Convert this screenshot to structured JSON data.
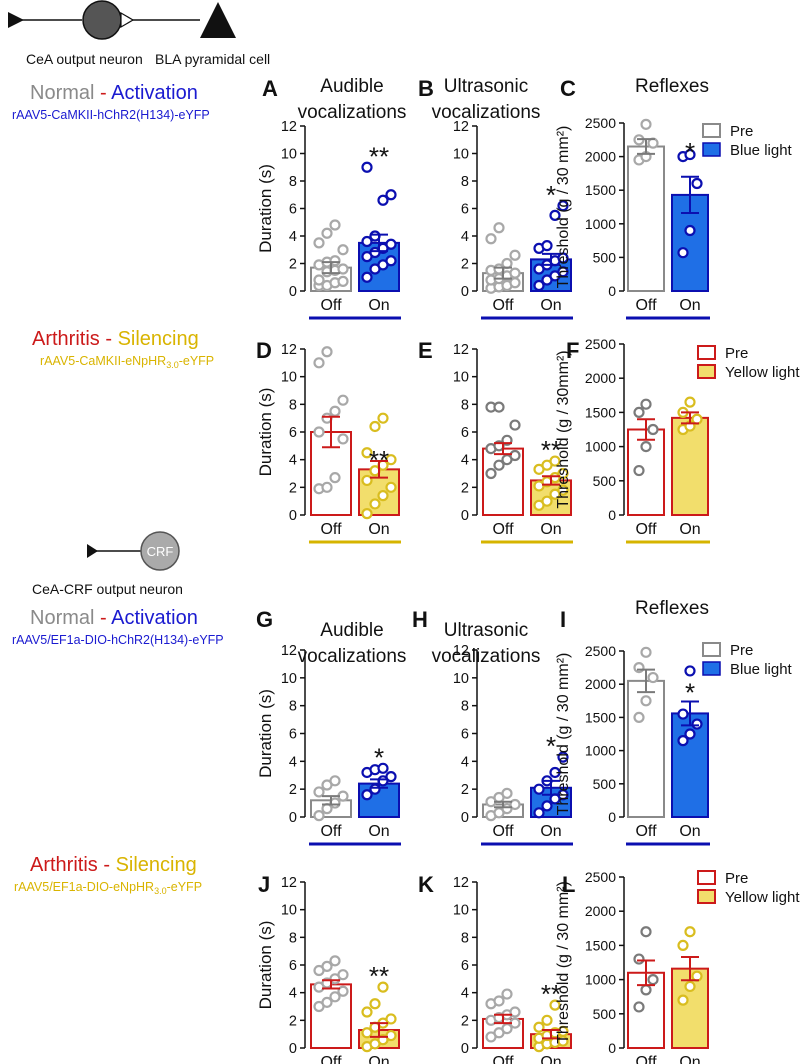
{
  "colors": {
    "blue": "#1f6fe6",
    "blue_stroke": "#0b0fb0",
    "blue_text": "#1a1ad0",
    "red": "#cc1a1a",
    "yellow": "#f2de6c",
    "yellow_line": "#d6b400",
    "yellow_pt": "#d9bd1f",
    "gray": "#8a8a8a",
    "gray_pt": "#a8a8a8",
    "dark_gray": "#7a7a7a",
    "dark": "#111111"
  },
  "schematic1": {
    "neuron1_label": "CeA output neuron",
    "neuron2_label": "BLA pyramidal cell"
  },
  "schematic2": {
    "cell_text": "CRF",
    "neuron_label": "CeA-CRF output neuron"
  },
  "row_headers": [
    {
      "word1": "Normal",
      "dash": " - ",
      "word2": "Activation",
      "construct": "rAAV5-CaMKII-hChR2(H134)-eYFP"
    },
    {
      "word1": "Arthritis",
      "dash": " - ",
      "word2": "Silencing",
      "construct": "rAAV5-CaMKII-eNpHR",
      "construct_sub": "3.0",
      "construct_end": "-eYFP"
    },
    {
      "word1": "Normal",
      "dash": " - ",
      "word2": "Activation",
      "construct": "rAAV5/EF1a-DIO-hChR2(H134)-eYFP"
    },
    {
      "word1": "Arthritis",
      "dash": " - ",
      "word2": "Silencing",
      "construct": "rAAV5/EF1a-DIO-eNpHR",
      "construct_sub": "3.0",
      "construct_end": "-eYFP"
    }
  ],
  "legends": [
    {
      "items": [
        "Pre",
        "Blue light"
      ]
    },
    {
      "items": [
        "Pre",
        "Yellow light"
      ]
    },
    {
      "items": [
        "Pre",
        "Blue light"
      ]
    },
    {
      "items": [
        "Pre",
        "Yellow light"
      ]
    }
  ],
  "chart_data": [
    {
      "panel": "A",
      "type": "bar",
      "title": [
        "Audible",
        "vocalizations"
      ],
      "ylabel": "Duration (s)",
      "ylim": [
        0,
        12
      ],
      "yticks": [
        0,
        2,
        4,
        6,
        8,
        10,
        12
      ],
      "categories": [
        "Off",
        "On"
      ],
      "values": [
        1.7,
        3.5
      ],
      "errors": [
        0.4,
        0.6
      ],
      "significance": "**",
      "scheme": "blue",
      "points": [
        [
          0.4,
          0.4,
          0.6,
          0.7,
          0.8,
          1.4,
          1.5,
          1.6,
          1.9,
          2.1,
          2.2,
          3.0,
          3.5,
          4.2,
          4.8
        ],
        [
          1.0,
          1.6,
          1.9,
          2.2,
          2.5,
          2.8,
          3.1,
          3.4,
          3.6,
          4.0,
          6.6,
          7.0,
          9.0
        ]
      ]
    },
    {
      "panel": "B",
      "type": "bar",
      "title": [
        "Ultrasonic",
        "vocalizations"
      ],
      "ylabel": "",
      "ylim": [
        0,
        12
      ],
      "yticks": [
        0,
        2,
        4,
        6,
        8,
        10,
        12
      ],
      "categories": [
        "Off",
        "On"
      ],
      "values": [
        1.3,
        2.3
      ],
      "errors": [
        0.4,
        0.4
      ],
      "significance": "*",
      "scheme": "blue",
      "points": [
        [
          0.2,
          0.3,
          0.4,
          0.6,
          0.8,
          0.9,
          1.1,
          1.3,
          1.5,
          1.6,
          2.0,
          2.6,
          3.8,
          4.6
        ],
        [
          0.4,
          0.8,
          1.1,
          1.4,
          1.6,
          1.9,
          2.2,
          2.4,
          3.1,
          3.3,
          5.5,
          6.2
        ]
      ]
    },
    {
      "panel": "C",
      "type": "bar",
      "title": [
        "Reflexes"
      ],
      "ylabel": "Threshold (g / 30 mm²)",
      "ylim": [
        0,
        2500
      ],
      "yticks": [
        0,
        500,
        1000,
        1500,
        2000,
        2500
      ],
      "categories": [
        "Off",
        "On"
      ],
      "values": [
        2150,
        1430
      ],
      "errors": [
        110,
        270
      ],
      "significance": "*",
      "scheme": "blue",
      "points": [
        [
          1950,
          2000,
          2200,
          2250,
          2480
        ],
        [
          570,
          900,
          1600,
          2000,
          2030
        ]
      ]
    },
    {
      "panel": "D",
      "type": "bar",
      "title": [],
      "ylabel": "Duration (s)",
      "ylim": [
        0,
        12
      ],
      "yticks": [
        0,
        2,
        4,
        6,
        8,
        10,
        12
      ],
      "categories": [
        "Off",
        "On"
      ],
      "values": [
        6.0,
        3.3
      ],
      "errors": [
        1.1,
        0.6
      ],
      "significance": "**",
      "scheme": "yellow",
      "points": [
        [
          1.9,
          2.0,
          2.7,
          5.5,
          6.0,
          7.0,
          7.5,
          8.3,
          11.0,
          11.8
        ],
        [
          0.1,
          0.8,
          1.4,
          2.0,
          2.5,
          3.2,
          3.6,
          4.0,
          4.5,
          6.4,
          7.0
        ]
      ]
    },
    {
      "panel": "E",
      "type": "bar",
      "title": [],
      "ylabel": "",
      "ylim": [
        0,
        12
      ],
      "yticks": [
        0,
        2,
        4,
        6,
        8,
        10,
        12
      ],
      "categories": [
        "Off",
        "On"
      ],
      "values": [
        4.8,
        2.5
      ],
      "errors": [
        0.4,
        0.3
      ],
      "significance": "**",
      "scheme": "yellow",
      "points": [
        [
          3.0,
          3.6,
          4.0,
          4.3,
          4.8,
          5.0,
          5.4,
          6.5,
          7.8,
          7.8
        ],
        [
          0.7,
          1.0,
          1.5,
          1.8,
          2.1,
          2.4,
          2.7,
          3.0,
          3.3,
          3.6,
          3.9
        ]
      ]
    },
    {
      "panel": "F",
      "type": "bar",
      "title": [],
      "ylabel": "Threshold (g / 30mm²)",
      "ylim": [
        0,
        2500
      ],
      "yticks": [
        0,
        500,
        1000,
        1500,
        2000,
        2500
      ],
      "categories": [
        "Off",
        "On"
      ],
      "values": [
        1250,
        1420
      ],
      "errors": [
        150,
        80
      ],
      "significance": "",
      "scheme": "yellow",
      "points": [
        [
          650,
          1000,
          1250,
          1500,
          1620
        ],
        [
          1250,
          1300,
          1400,
          1500,
          1650
        ]
      ]
    },
    {
      "panel": "G",
      "type": "bar",
      "title": [
        "Audible",
        "vocalizations"
      ],
      "ylabel": "Duration (s)",
      "ylim": [
        0,
        12
      ],
      "yticks": [
        0,
        2,
        4,
        6,
        8,
        10,
        12
      ],
      "categories": [
        "Off",
        "On"
      ],
      "values": [
        1.2,
        2.4
      ],
      "errors": [
        0.3,
        0.3
      ],
      "significance": "*",
      "scheme": "blue",
      "points": [
        [
          0.1,
          0.6,
          1.0,
          1.5,
          1.8,
          2.3,
          2.6
        ],
        [
          1.6,
          2.0,
          2.6,
          2.9,
          3.2,
          3.4,
          3.5
        ]
      ]
    },
    {
      "panel": "H",
      "type": "bar",
      "title": [
        "Ultrasonic",
        "vocalizations"
      ],
      "ylabel": "",
      "ylim": [
        0,
        12
      ],
      "yticks": [
        0,
        2,
        4,
        6,
        8,
        10,
        12
      ],
      "categories": [
        "Off",
        "On"
      ],
      "values": [
        0.9,
        2.1
      ],
      "errors": [
        0.2,
        0.5
      ],
      "significance": "*",
      "scheme": "blue",
      "points": [
        [
          0.1,
          0.3,
          0.6,
          0.9,
          1.1,
          1.4,
          1.7
        ],
        [
          0.3,
          0.8,
          1.3,
          1.6,
          2.0,
          2.6,
          3.2,
          4.3
        ]
      ]
    },
    {
      "panel": "I",
      "type": "bar",
      "title": [
        "Reflexes"
      ],
      "ylabel": "Threshold (g / 30 mm²)",
      "ylim": [
        0,
        2500
      ],
      "yticks": [
        0,
        500,
        1000,
        1500,
        2000,
        2500
      ],
      "categories": [
        "Off",
        "On"
      ],
      "values": [
        2050,
        1560
      ],
      "errors": [
        170,
        180
      ],
      "significance": "*",
      "scheme": "blue",
      "points": [
        [
          1500,
          1750,
          2100,
          2250,
          2480
        ],
        [
          1150,
          1250,
          1400,
          1550,
          2200
        ]
      ]
    },
    {
      "panel": "J",
      "type": "bar",
      "title": [],
      "ylabel": "Duration (s)",
      "ylim": [
        0,
        12
      ],
      "yticks": [
        0,
        2,
        4,
        6,
        8,
        10,
        12
      ],
      "categories": [
        "Off",
        "On"
      ],
      "values": [
        4.6,
        1.3
      ],
      "errors": [
        0.3,
        0.5
      ],
      "significance": "**",
      "scheme": "yellow",
      "points": [
        [
          3.0,
          3.3,
          3.7,
          4.1,
          4.4,
          4.7,
          5.0,
          5.3,
          5.6,
          5.9,
          6.3
        ],
        [
          0.1,
          0.3,
          0.6,
          0.9,
          1.1,
          1.5,
          1.8,
          2.1,
          2.6,
          3.2,
          4.4
        ]
      ]
    },
    {
      "panel": "K",
      "type": "bar",
      "title": [],
      "ylabel": "",
      "ylim": [
        0,
        12
      ],
      "yticks": [
        0,
        2,
        4,
        6,
        8,
        10,
        12
      ],
      "categories": [
        "Off",
        "On"
      ],
      "values": [
        2.1,
        1.0
      ],
      "errors": [
        0.3,
        0.3
      ],
      "significance": "**",
      "scheme": "yellow",
      "points": [
        [
          0.8,
          1.1,
          1.4,
          1.8,
          2.0,
          2.2,
          2.4,
          2.6,
          3.2,
          3.4,
          3.9
        ],
        [
          0.1,
          0.3,
          0.4,
          0.5,
          0.7,
          0.9,
          1.1,
          1.2,
          1.5,
          2.0,
          3.1
        ]
      ]
    },
    {
      "panel": "L",
      "type": "bar",
      "title": [],
      "ylabel": "Threshold (g / 30 mm²)",
      "ylim": [
        0,
        2500
      ],
      "yticks": [
        0,
        500,
        1000,
        1500,
        2000,
        2500
      ],
      "categories": [
        "Off",
        "On"
      ],
      "values": [
        1100,
        1160
      ],
      "errors": [
        180,
        170
      ],
      "significance": "",
      "scheme": "yellow",
      "points": [
        [
          600,
          850,
          1000,
          1300,
          1700
        ],
        [
          700,
          900,
          1050,
          1500,
          1700
        ]
      ]
    }
  ]
}
